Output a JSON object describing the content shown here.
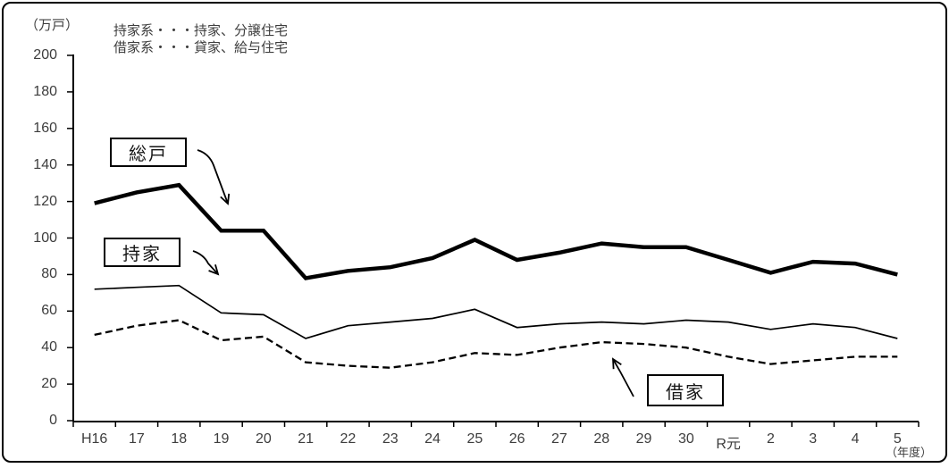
{
  "colors": {
    "line": "#000000",
    "axis_text": "#3d3d3d",
    "background": "#ffffff",
    "border": "#000000"
  },
  "chart_data": {
    "type": "line",
    "title": "",
    "unit_label": "（万戸）",
    "x_unit_label": "（年度）",
    "note_lines": [
      "持家系・・・持家、分譲住宅",
      "借家系・・・貸家、給与住宅"
    ],
    "categories": [
      "H16",
      "17",
      "18",
      "19",
      "20",
      "21",
      "22",
      "23",
      "24",
      "25",
      "26",
      "27",
      "28",
      "29",
      "30",
      "R元",
      "2",
      "3",
      "4",
      "5"
    ],
    "xlabel": "年度",
    "ylabel": "万戸",
    "ylim": [
      0,
      200
    ],
    "ytick_step": 20,
    "grid": false,
    "legend_position": "inline-annotation-boxes",
    "series": [
      {
        "key": "total",
        "name": "総戸",
        "style": "thick-solid",
        "values": [
          119,
          125,
          129,
          104,
          104,
          78,
          82,
          84,
          89,
          99,
          88,
          92,
          97,
          95,
          95,
          88,
          81,
          87,
          86,
          80
        ]
      },
      {
        "key": "owner",
        "name": "持家",
        "style": "thin-solid",
        "values": [
          72,
          73,
          74,
          59,
          58,
          45,
          52,
          54,
          56,
          61,
          51,
          53,
          54,
          53,
          55,
          54,
          50,
          53,
          51,
          45
        ]
      },
      {
        "key": "rental",
        "name": "借家",
        "style": "dashed",
        "values": [
          47,
          52,
          55,
          44,
          46,
          32,
          30,
          29,
          32,
          37,
          36,
          40,
          43,
          42,
          40,
          35,
          31,
          33,
          35,
          35
        ]
      }
    ]
  }
}
